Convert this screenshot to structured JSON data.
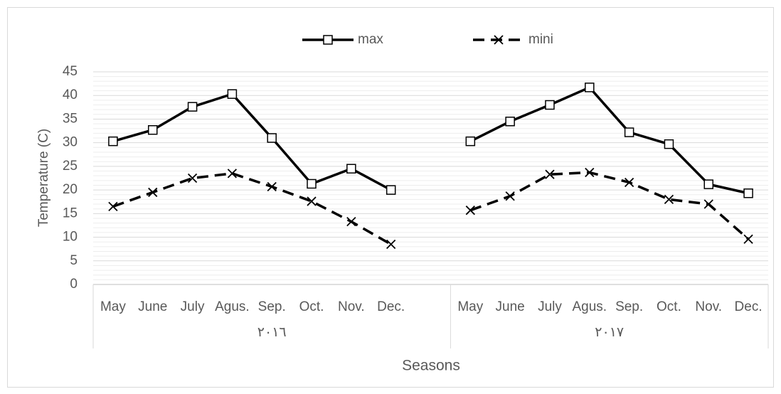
{
  "chart_data": {
    "type": "line",
    "y_label": "Temperature (C)",
    "x_label": "Seasons",
    "groups": [
      {
        "name": "٢٠١٦",
        "categories": [
          "May",
          "June",
          "July",
          "Agus.",
          "Sep.",
          "Oct.",
          "Nov.",
          "Dec.",
          null
        ]
      },
      {
        "name": "٢٠١٧",
        "categories": [
          "May",
          "June",
          "July",
          "Agus.",
          "Sep.",
          "Oct.",
          "Nov.",
          "Dec."
        ]
      }
    ],
    "series": [
      {
        "name": "max",
        "color": "#000000",
        "marker": "square",
        "dashed": false,
        "values": [
          30.3,
          32.7,
          37.6,
          40.3,
          31,
          21.3,
          24.5,
          20,
          null,
          30.3,
          34.5,
          38,
          41.7,
          32.2,
          29.7,
          21.2,
          19.3
        ]
      },
      {
        "name": "mini",
        "color": "#000000",
        "marker": "x",
        "dashed": true,
        "values": [
          16.5,
          19.5,
          22.5,
          23.5,
          20.7,
          17.6,
          13.3,
          8.5,
          null,
          15.7,
          18.7,
          23.3,
          23.7,
          21.6,
          18,
          17,
          9.6
        ]
      }
    ],
    "ylim": [
      0,
      45
    ],
    "yticks": [
      0,
      5,
      10,
      15,
      20,
      25,
      30,
      35,
      40,
      45
    ],
    "grid": true,
    "legend": "top"
  }
}
